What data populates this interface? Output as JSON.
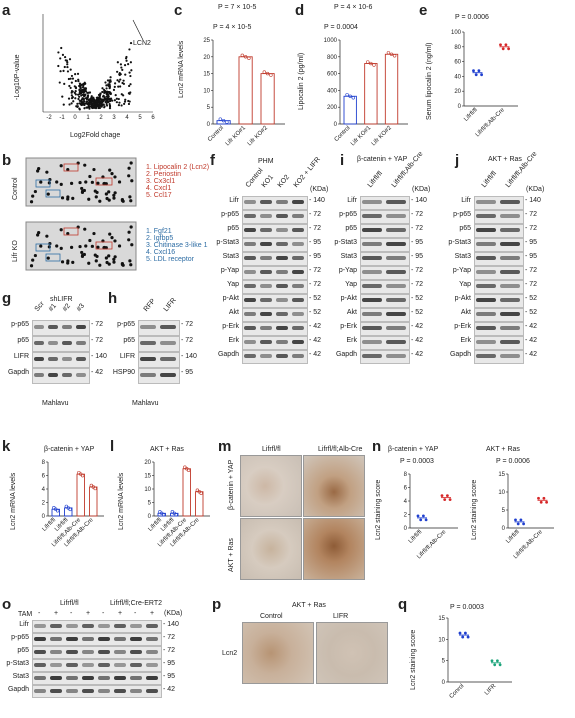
{
  "panels": {
    "a": {
      "letter": "a",
      "ylabel": "-Log10P-value",
      "xlabel": "Log2Fold chage",
      "annotation": "LCN2",
      "xticks": [
        "-2",
        "-1",
        "0",
        "1",
        "2",
        "3",
        "4",
        "5",
        "6"
      ]
    },
    "b": {
      "letter": "b",
      "rows": [
        "Control",
        "Lifr KO"
      ],
      "up_list": [
        "1. Lipocalin 2 (Lcn2)",
        "2. Periostin",
        "3. Cx3cl1",
        "4. Cxcl1",
        "5. Ccl17"
      ],
      "down_list": [
        "1. Fgf21",
        "2. Igfbp5",
        "3. Chitinase 3-like 1",
        "4. Cxcl16",
        "5. LDL receptor"
      ]
    },
    "c": {
      "letter": "c",
      "ylabel": "Lcn2 mRNA levels",
      "p_top": "P = 7 × 10-5",
      "p_bottom": "P = 4 × 10-5",
      "categories": [
        "Control",
        "Lifr KO#1",
        "Lifr KO#2"
      ]
    },
    "d": {
      "letter": "d",
      "ylabel": "Lipocalin 2 (pg/ml)",
      "p_top": "P = 4 × 10-6",
      "p_bottom": "P = 0.0004",
      "categories": [
        "Control",
        "Lifr KO#1",
        "Lifr KO#2"
      ]
    },
    "e": {
      "letter": "e",
      "ylabel": "Serum lipocalin 2 (ng/ml)",
      "p": "P = 0.0006",
      "categories": [
        "Lifrfl/fl",
        "Lifrfl/fl;Alb-Cre"
      ]
    },
    "f": {
      "letter": "f",
      "title": "PHM",
      "lanes": [
        "Control",
        "KO1",
        "KO2",
        "KO2 + LIFR"
      ],
      "kda": "(KDa)",
      "rows": [
        "Lifr",
        "p-p65",
        "p65",
        "p-Stat3",
        "Stat3",
        "p-Yap",
        "Yap",
        "p-Akt",
        "Akt",
        "p-Erk",
        "Erk",
        "Gapdh"
      ],
      "mw": [
        "140",
        "72",
        "72",
        "95",
        "95",
        "72",
        "72",
        "52",
        "52",
        "42",
        "42",
        "42"
      ]
    },
    "i": {
      "letter": "i",
      "title": "β-catenin + YAP",
      "lanes": [
        "Lifrfl/fl",
        "Lifrfl/fl;Alb-Cre"
      ],
      "kda": "(KDa)",
      "rows": [
        "Lifr",
        "p-p65",
        "p65",
        "p-Stat3",
        "Stat3",
        "p-Yap",
        "Yap",
        "p-Akt",
        "Akt",
        "p-Erk",
        "Erk",
        "Gapdh"
      ],
      "mw": [
        "140",
        "72",
        "72",
        "95",
        "95",
        "72",
        "72",
        "52",
        "52",
        "42",
        "42",
        "42"
      ]
    },
    "j": {
      "letter": "j",
      "title": "AKT + Ras",
      "lanes": [
        "Lifrfl/fl",
        "Lifrfl/fl;Alb-Cre"
      ],
      "kda": "(KDa)",
      "rows": [
        "Lifr",
        "p-p65",
        "p65",
        "p-Stat3",
        "Stat3",
        "p-Yap",
        "Yap",
        "p-Akt",
        "Akt",
        "p-Erk",
        "Erk",
        "Gapdh"
      ],
      "mw": [
        "140",
        "72",
        "72",
        "95",
        "95",
        "72",
        "72",
        "52",
        "52",
        "42",
        "42",
        "42"
      ]
    },
    "g": {
      "letter": "g",
      "title": "shLIFR",
      "lanes": [
        "Scr",
        "#1",
        "#2",
        "#3"
      ],
      "rows": [
        "p-p65",
        "p65",
        "LIFR",
        "Gapdh"
      ],
      "mw": [
        "72",
        "72",
        "140",
        "42"
      ],
      "cell": "Mahlavu"
    },
    "h": {
      "letter": "h",
      "lanes": [
        "RFP",
        "LIFR"
      ],
      "rows": [
        "p-p65",
        "p65",
        "LIFR",
        "HSP90"
      ],
      "mw": [
        "72",
        "72",
        "140",
        "95"
      ],
      "cell": "Mahlavu"
    },
    "k": {
      "letter": "k",
      "title": "β-catenin + YAP",
      "ylabel": "Lcn2 mRNA levels",
      "categories": [
        "Lifrfl/fl",
        "Lifrfl/fl",
        "Lifrfl/fl;Alb-Cre",
        "Lifrfl/fl;Alb-Cre"
      ]
    },
    "l": {
      "letter": "l",
      "title": "AKT + Ras",
      "ylabel": "Lcn2 mRNA levels",
      "categories": [
        "Lifrfl/fl",
        "Lifrfl/fl",
        "Lifrfl/fl;Alb-Cre",
        "Lifrfl/fl;Alb-Cre"
      ]
    },
    "m": {
      "letter": "m",
      "cols": [
        "Lifrfl/fl",
        "Lifrfl/fl;Alb-Cre"
      ],
      "rows": [
        "β-catenin + YAP",
        "AKT + Ras"
      ]
    },
    "n": {
      "letter": "n",
      "left_title": "β-catenin + YAP",
      "right_title": "AKT + Ras",
      "p_left": "P = 0.0003",
      "p_right": "P = 0.0006",
      "ylabel": "Lcn2 staining score",
      "categories": [
        "Lifrfl/fl",
        "Lifrfl/fl;Alb-Cre"
      ]
    },
    "o": {
      "letter": "o",
      "groups": [
        "Lifrfl/fl",
        "Lifrfl/fl;Cre-ERT2"
      ],
      "tam_label": "TAM",
      "tam": [
        "-",
        "+",
        "-",
        "+",
        "-",
        "+",
        "-",
        "+"
      ],
      "kda": "(KDa)",
      "rows": [
        "Lifr",
        "p-p65",
        "p65",
        "p-Stat3",
        "Stat3",
        "Gapdh"
      ],
      "mw": [
        "140",
        "72",
        "72",
        "95",
        "95",
        "42"
      ]
    },
    "p": {
      "letter": "p",
      "title": "AKT + Ras",
      "cols": [
        "Control",
        "LIFR"
      ],
      "row": "Lcn2"
    },
    "q": {
      "letter": "q",
      "p": "P = 0.0003",
      "ylabel": "Lcn2 staining score",
      "categories": [
        "Conrol",
        "LIFR"
      ]
    }
  },
  "chart_data": [
    {
      "type": "scatter",
      "panel": "a",
      "xlabel": "Log2Fold chage",
      "ylabel": "-Log10P-value",
      "xlim": [
        -2,
        6
      ],
      "annotations": [
        "LCN2"
      ]
    },
    {
      "type": "bar",
      "panel": "c",
      "categories": [
        "Control",
        "Lifr KO#1",
        "Lifr KO#2"
      ],
      "values": [
        1,
        20,
        15
      ],
      "ylim": [
        0,
        25
      ],
      "yticks": [
        0,
        5,
        10,
        15,
        20,
        25
      ]
    },
    {
      "type": "bar",
      "panel": "d",
      "categories": [
        "Control",
        "Lifr KO#1",
        "Lifr KO#2"
      ],
      "values": [
        330,
        720,
        830
      ],
      "ylim": [
        0,
        1000
      ],
      "yticks": [
        0,
        200,
        400,
        600,
        800,
        1000
      ]
    },
    {
      "type": "scatter",
      "panel": "e",
      "categories": [
        "Lifrfl/fl",
        "Lifrfl/fl;Alb-Cre"
      ],
      "values": [
        45,
        80
      ],
      "ylim": [
        0,
        100
      ],
      "yticks": [
        0,
        20,
        40,
        60,
        80,
        100
      ]
    },
    {
      "type": "bar",
      "panel": "k",
      "categories": [
        "Lifrfl/fl",
        "Lifrfl/fl",
        "Lifrfl/fl;Alb-Cre",
        "Lifrfl/fl;Alb-Cre"
      ],
      "values": [
        1,
        1.2,
        6.2,
        4.3
      ],
      "ylim": [
        0,
        8
      ],
      "yticks": [
        0,
        2,
        4,
        6,
        8
      ]
    },
    {
      "type": "bar",
      "panel": "l",
      "categories": [
        "Lifrfl/fl",
        "Lifrfl/fl",
        "Lifrfl/fl;Alb-Cre",
        "Lifrfl/fl;Alb-Cre"
      ],
      "values": [
        1,
        1,
        17.5,
        9
      ],
      "ylim": [
        0,
        20
      ],
      "yticks": [
        0,
        5,
        10,
        15,
        20
      ]
    },
    {
      "type": "scatter",
      "panel": "n-left",
      "categories": [
        "Lifrfl/fl",
        "Lifrfl/fl;Alb-Cre"
      ],
      "values": [
        1.5,
        4.5
      ],
      "ylim": [
        0,
        8
      ],
      "yticks": [
        0,
        2,
        4,
        6,
        8
      ]
    },
    {
      "type": "scatter",
      "panel": "n-right",
      "categories": [
        "Lifrfl/fl",
        "Lifrfl/fl;Alb-Cre"
      ],
      "values": [
        1.7,
        7.7
      ],
      "ylim": [
        0,
        15
      ],
      "yticks": [
        0,
        5,
        10,
        15
      ]
    },
    {
      "type": "scatter",
      "panel": "q",
      "categories": [
        "Conrol",
        "LIFR"
      ],
      "values": [
        11,
        4.5
      ],
      "ylim": [
        0,
        15
      ],
      "yticks": [
        0,
        5,
        10,
        15
      ]
    }
  ]
}
